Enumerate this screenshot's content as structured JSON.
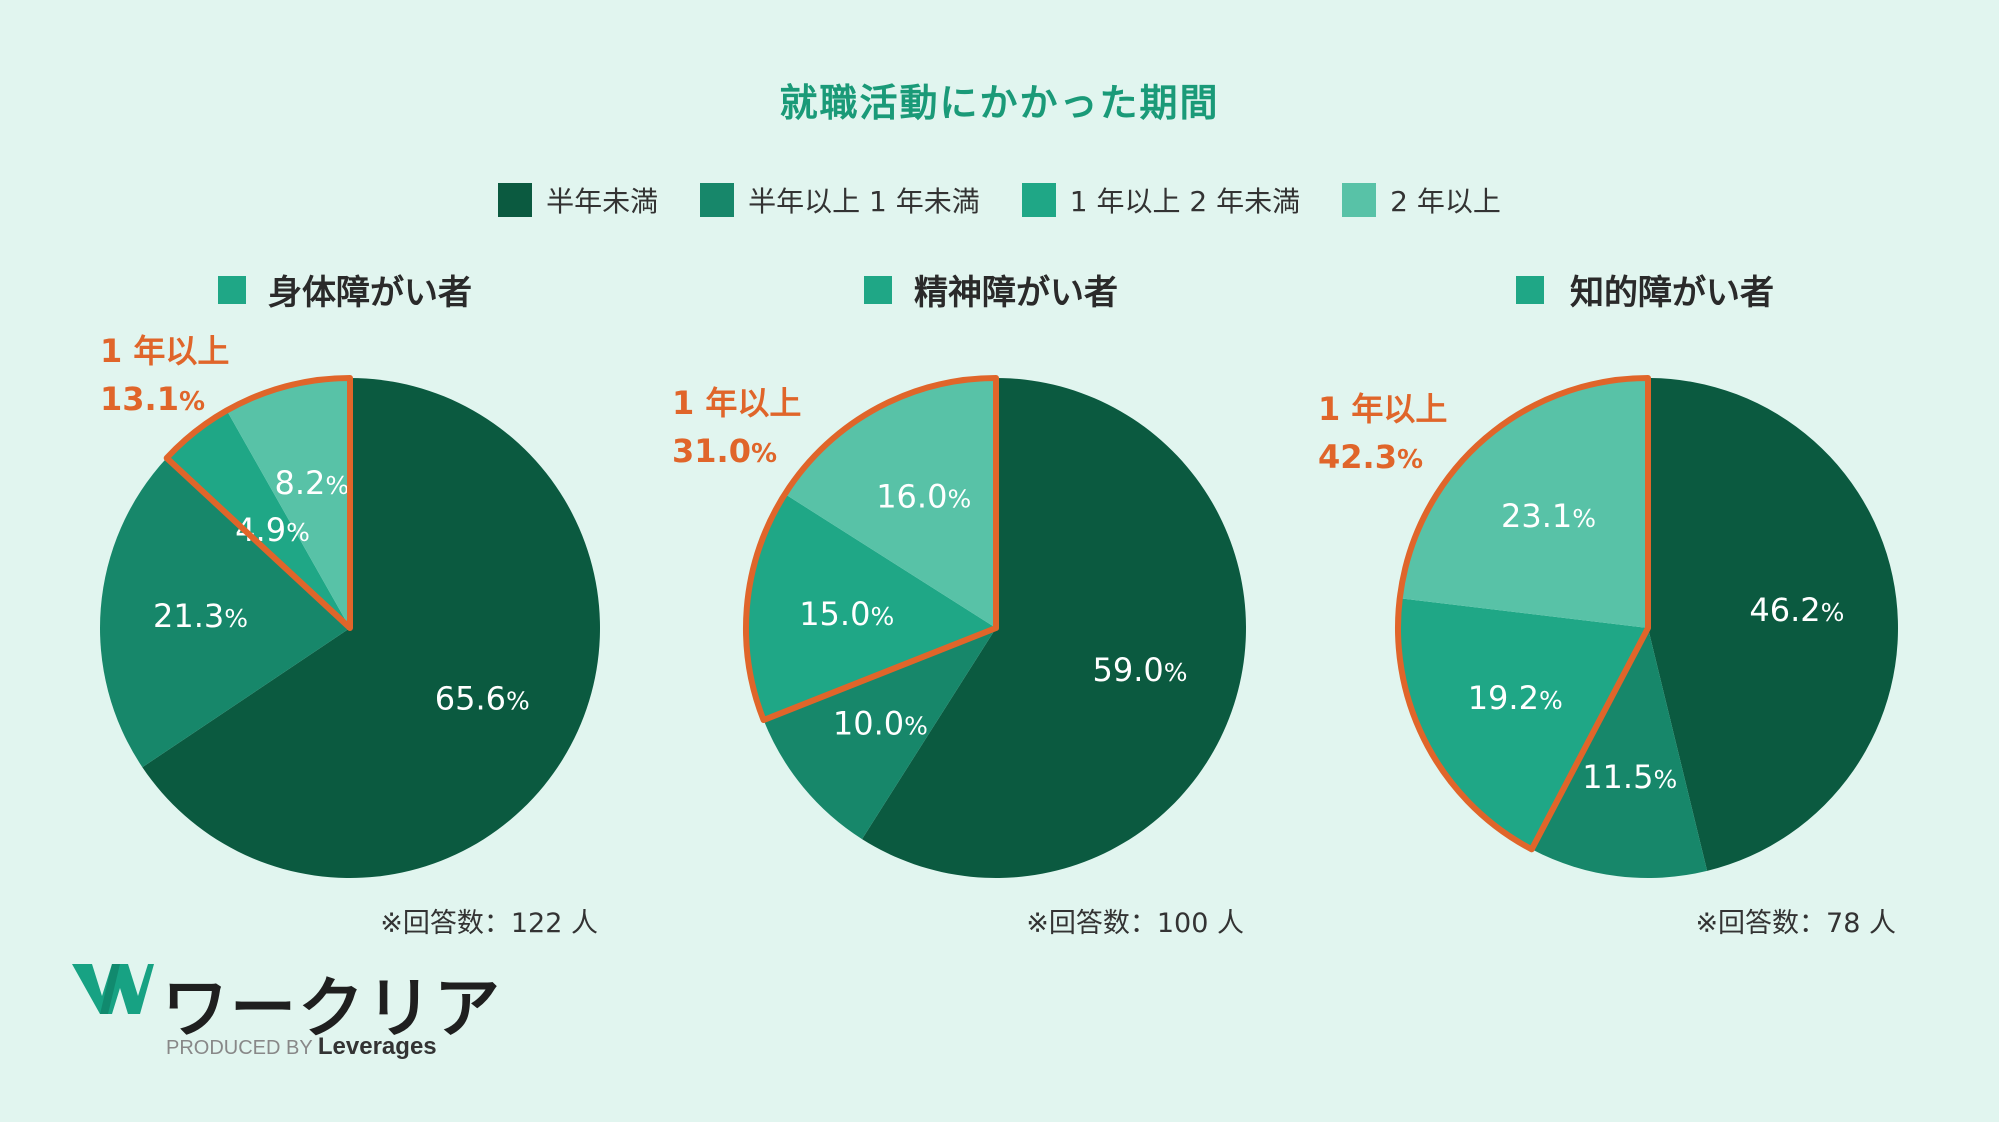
{
  "title": "就職活動にかかった期間",
  "legend": [
    {
      "label": "半年未満",
      "color": "#0b5a40"
    },
    {
      "label": "半年以上 1 年未満",
      "color": "#17876a"
    },
    {
      "label": "1 年以上 2 年未満",
      "color": "#1fa786"
    },
    {
      "label": "2 年以上",
      "color": "#58c2a7"
    }
  ],
  "highlight_color": "#e0652a",
  "chart_data": [
    {
      "type": "pie",
      "title": "身体障がい者",
      "categories": [
        "半年未満",
        "半年以上 1 年未満",
        "1 年以上 2 年未満",
        "2 年以上"
      ],
      "values": [
        65.6,
        21.3,
        4.9,
        8.2
      ],
      "value_labels": [
        "65.6",
        "21.3",
        "4.9",
        "8.2"
      ],
      "highlight": {
        "line1": "1 年以上",
        "value": "13.1"
      },
      "respondents": "※回答数：122 人"
    },
    {
      "type": "pie",
      "title": "精神障がい者",
      "categories": [
        "半年未満",
        "半年以上 1 年未満",
        "1 年以上 2 年未満",
        "2 年以上"
      ],
      "values": [
        59.0,
        10.0,
        15.0,
        16.0
      ],
      "value_labels": [
        "59.0",
        "10.0",
        "15.0",
        "16.0"
      ],
      "highlight": {
        "line1": "1 年以上",
        "value": "31.0"
      },
      "respondents": "※回答数：100 人"
    },
    {
      "type": "pie",
      "title": "知的障がい者",
      "categories": [
        "半年未満",
        "半年以上 1 年未満",
        "1 年以上 2 年未満",
        "2 年以上"
      ],
      "values": [
        46.2,
        11.5,
        19.2,
        23.1
      ],
      "value_labels": [
        "46.2",
        "11.5",
        "19.2",
        "23.1"
      ],
      "highlight": {
        "line1": "1 年以上",
        "value": "42.3"
      },
      "respondents": "※回答数：78 人"
    }
  ],
  "logo": {
    "name": "ワークリア",
    "produced_by": "PRODUCED BY",
    "company": "Leverages"
  }
}
